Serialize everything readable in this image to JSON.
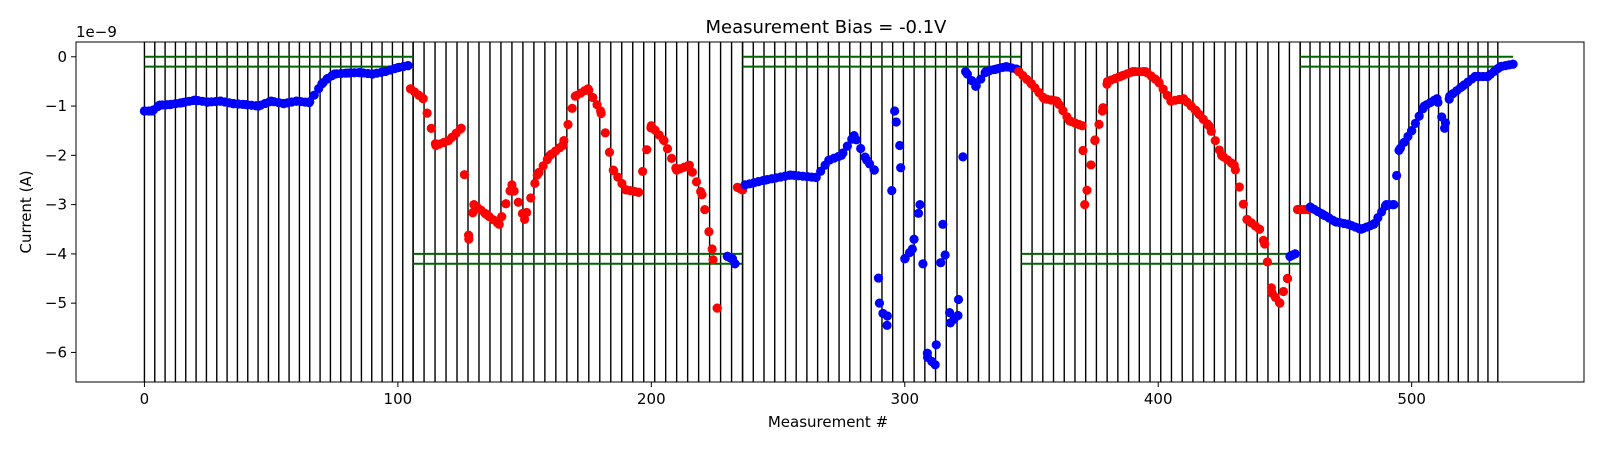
{
  "chart_data": {
    "type": "scatter",
    "title": "Measurement Bias = -0.1V",
    "xlabel": "Measurement #",
    "ylabel": "Current (A)",
    "y_offset_label": "1e−9",
    "xlim": [
      -27,
      568
    ],
    "ylim": [
      -6.6,
      0.3
    ],
    "y_scale_factor": 1e-09,
    "x_ticks": [
      0,
      100,
      200,
      300,
      400,
      500
    ],
    "y_ticks": [
      0,
      -1,
      -2,
      -3,
      -4,
      -5,
      -6
    ],
    "y_tick_labels": [
      "0",
      "−1",
      "−2",
      "−3",
      "−4",
      "−5",
      "−6"
    ],
    "grid": false,
    "legend": "none",
    "colors": {
      "series_a": "#0000ff",
      "series_b": "#ff0000",
      "marker_lines": "#000000",
      "guide_lines": "#006400"
    },
    "vertical_lines": {
      "blocks": [
        {
          "start": 0,
          "end": 106,
          "count": 26
        },
        {
          "start": 106,
          "end": 236,
          "count": 30
        },
        {
          "start": 236,
          "end": 346,
          "count": 26
        },
        {
          "start": 346,
          "end": 456,
          "count": 26
        },
        {
          "start": 456,
          "end": 534,
          "count": 20
        }
      ]
    },
    "guide_lines": [
      {
        "x0": 0,
        "x1": 106,
        "y": [
          0,
          -0.2
        ]
      },
      {
        "x0": 106,
        "x1": 236,
        "y": [
          -4.0,
          -4.2
        ]
      },
      {
        "x0": 236,
        "x1": 346,
        "y": [
          0,
          -0.2
        ]
      },
      {
        "x0": 346,
        "x1": 456,
        "y": [
          -4.0,
          -4.2
        ]
      },
      {
        "x0": 456,
        "x1": 540,
        "y": [
          0,
          -0.2
        ]
      }
    ],
    "series": [
      {
        "color": "blue",
        "anchors_x": [
          0,
          3,
          6,
          10,
          15,
          20,
          25,
          30,
          35,
          40,
          45,
          50,
          55,
          60,
          65,
          70,
          72,
          75,
          80,
          85,
          90,
          95,
          100,
          104
        ],
        "anchors_y": [
          -1.1,
          -1.1,
          -0.98,
          -0.97,
          -0.93,
          -0.88,
          -0.92,
          -0.9,
          -0.95,
          -0.97,
          -1.0,
          -0.9,
          -0.95,
          -0.9,
          -0.93,
          -0.55,
          -0.45,
          -0.35,
          -0.33,
          -0.32,
          -0.35,
          -0.3,
          -0.22,
          -0.18
        ],
        "start": 0,
        "end": 104,
        "count": 60
      },
      {
        "color": "red",
        "anchors_x": [
          105,
          110,
          115,
          120,
          125,
          128,
          130,
          135,
          140,
          145,
          150,
          155,
          160,
          165,
          170,
          175,
          180,
          185,
          190,
          195,
          200,
          205,
          210,
          215,
          220,
          224,
          226
        ],
        "anchors_y": [
          -0.65,
          -0.85,
          -1.8,
          -1.7,
          -1.45,
          -3.7,
          -3.0,
          -3.2,
          -3.4,
          -2.6,
          -3.3,
          -2.4,
          -2.0,
          -1.8,
          -0.8,
          -0.65,
          -1.1,
          -2.3,
          -2.7,
          -2.75,
          -1.4,
          -1.7,
          -2.3,
          -2.2,
          -2.8,
          -3.9,
          -5.1
        ],
        "start": 105,
        "end": 226,
        "count": 75
      },
      {
        "color": "blue",
        "anchors_x": [
          230,
          232,
          233
        ],
        "anchors_y": [
          -4.05,
          -4.1,
          -4.2
        ],
        "start": 230,
        "end": 233,
        "count": 4
      },
      {
        "color": "red",
        "anchors_x": [
          234,
          236
        ],
        "anchors_y": [
          -2.65,
          -2.7
        ],
        "start": 234,
        "end": 236,
        "count": 3
      },
      {
        "color": "blue",
        "anchors_x": [
          237,
          245,
          255,
          265,
          270,
          275,
          280,
          285,
          288,
          290,
          293,
          296,
          298,
          300,
          303,
          306,
          309,
          312,
          315,
          318,
          321,
          324,
          328,
          332,
          336,
          340,
          344
        ],
        "anchors_y": [
          -2.6,
          -2.5,
          -2.4,
          -2.45,
          -2.1,
          -2.0,
          -1.6,
          -2.1,
          -2.3,
          -5.0,
          -5.45,
          -1.1,
          -1.8,
          -4.1,
          -3.9,
          -3.0,
          -6.1,
          -6.25,
          -3.4,
          -5.4,
          -5.25,
          -0.3,
          -0.6,
          -0.3,
          -0.25,
          -0.2,
          -0.25
        ],
        "start": 237,
        "end": 344,
        "count": 62
      },
      {
        "color": "red",
        "anchors_x": [
          345,
          350,
          355,
          360,
          365,
          370,
          371,
          375,
          378,
          380,
          385,
          390,
          395,
          400,
          405,
          410,
          415,
          420,
          425,
          430,
          435,
          440,
          442,
          445,
          448,
          451
        ],
        "anchors_y": [
          -0.3,
          -0.55,
          -0.85,
          -0.9,
          -1.3,
          -1.4,
          -3.0,
          -1.7,
          -1.1,
          -0.5,
          -0.4,
          -0.3,
          -0.3,
          -0.5,
          -0.9,
          -0.85,
          -1.1,
          -1.4,
          -2.0,
          -2.2,
          -3.3,
          -3.5,
          -3.8,
          -4.8,
          -5.0,
          -4.5
        ],
        "start": 345,
        "end": 451,
        "count": 68
      },
      {
        "color": "blue",
        "anchors_x": [
          452,
          454
        ],
        "anchors_y": [
          -4.05,
          -4.0
        ],
        "start": 452,
        "end": 454,
        "count": 3
      },
      {
        "color": "red",
        "anchors_x": [
          455,
          459
        ],
        "anchors_y": [
          -3.1,
          -3.1
        ],
        "start": 455,
        "end": 459,
        "count": 4
      },
      {
        "color": "blue",
        "anchors_x": [
          460,
          465,
          470,
          475,
          480,
          485,
          490,
          493,
          495,
          500,
          505,
          510,
          513,
          515,
          520,
          525,
          530,
          535,
          540
        ],
        "anchors_y": [
          -3.05,
          -3.2,
          -3.35,
          -3.4,
          -3.5,
          -3.4,
          -3.0,
          -3.0,
          -1.9,
          -1.5,
          -1.0,
          -0.85,
          -1.45,
          -0.8,
          -0.6,
          -0.4,
          -0.4,
          -0.2,
          -0.15
        ],
        "start": 460,
        "end": 540,
        "count": 55
      }
    ]
  }
}
